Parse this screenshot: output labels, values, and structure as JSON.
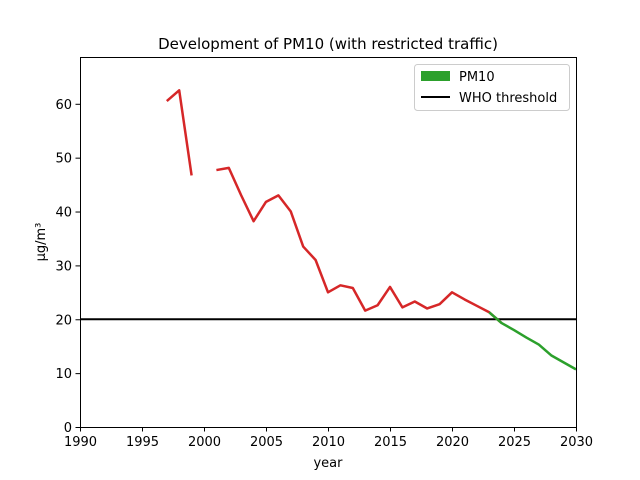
{
  "chart_data": {
    "type": "line",
    "title": "Development of PM10 (with restricted traffic)",
    "xlabel": "year",
    "ylabel": "µg/m³",
    "xlim": [
      1990,
      2030
    ],
    "ylim": [
      0,
      68.5
    ],
    "x_ticks": [
      1990,
      1995,
      2000,
      2005,
      2010,
      2015,
      2020,
      2025,
      2030
    ],
    "y_ticks": [
      0,
      10,
      20,
      30,
      40,
      50,
      60
    ],
    "grid": false,
    "legend_position": "top-right",
    "colors": {
      "measured": "#d62728",
      "projected": "#2ca02c",
      "threshold": "#000000"
    },
    "legend": [
      {
        "label": "PM10",
        "color": "#2ca02c",
        "kind": "patch"
      },
      {
        "label": "WHO threshold",
        "color": "#000000",
        "kind": "line"
      }
    ],
    "series": [
      {
        "color": "#d62728",
        "segments": [
          [
            [
              1997,
              60.5
            ],
            [
              1998,
              62.5
            ],
            [
              1999,
              46.7
            ]
          ],
          [
            [
              2001,
              47.7
            ],
            [
              2002,
              48.1
            ],
            [
              2003,
              43.0
            ],
            [
              2004,
              38.2
            ],
            [
              2005,
              41.8
            ],
            [
              2006,
              43.0
            ],
            [
              2007,
              40.0
            ],
            [
              2008,
              33.5
            ],
            [
              2009,
              31.0
            ],
            [
              2010,
              25.0
            ],
            [
              2011,
              26.3
            ],
            [
              2012,
              25.8
            ],
            [
              2013,
              21.6
            ],
            [
              2014,
              22.6
            ],
            [
              2015,
              26.0
            ],
            [
              2016,
              22.2
            ],
            [
              2017,
              23.3
            ],
            [
              2018,
              22.0
            ],
            [
              2019,
              22.8
            ],
            [
              2020,
              25.0
            ],
            [
              2021,
              23.7
            ],
            [
              2022,
              22.5
            ],
            [
              2023,
              21.3
            ],
            [
              2024,
              19.3
            ]
          ]
        ]
      },
      {
        "color": "#2ca02c",
        "segments": [
          [
            [
              2023,
              21.3
            ],
            [
              2024,
              19.3
            ],
            [
              2025,
              18.0
            ],
            [
              2026,
              16.6
            ],
            [
              2027,
              15.3
            ],
            [
              2028,
              13.3
            ],
            [
              2029,
              12.0
            ],
            [
              2030,
              10.7
            ]
          ]
        ]
      }
    ],
    "threshold": {
      "value": 20
    }
  }
}
